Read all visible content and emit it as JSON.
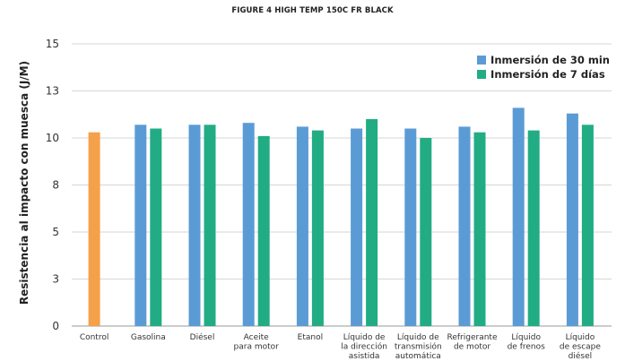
{
  "chart_data": {
    "type": "bar",
    "title": "FIGURE 4 HIGH TEMP 150C FR BLACK",
    "xlabel": "",
    "ylabel": "Resistencia al impacto con muesca (J/M)",
    "ylim": [
      0,
      15
    ],
    "yticks": [
      "0",
      "3",
      "5",
      "8",
      "10",
      "13",
      "15"
    ],
    "grid": true,
    "legend_position": "top-right",
    "categories": [
      [
        "Control"
      ],
      [
        "Gasolina"
      ],
      [
        "Diésel"
      ],
      [
        "Aceite",
        "para motor"
      ],
      [
        "Etanol"
      ],
      [
        "Líquido de",
        "la dirección",
        "asistida"
      ],
      [
        "Líquido de",
        "transmisión",
        "automática"
      ],
      [
        "Refrigerante",
        "de motor"
      ],
      [
        "Líquido",
        "de frenos"
      ],
      [
        "Líquido",
        "de escape",
        "diésel"
      ]
    ],
    "control": {
      "value": 10.3,
      "color": "#F5A04A"
    },
    "series": [
      {
        "name": "Inmersión de 30 min",
        "color": "#5B9BD5",
        "values": [
          null,
          10.7,
          10.7,
          10.8,
          10.6,
          10.5,
          10.5,
          10.6,
          11.6,
          11.3
        ]
      },
      {
        "name": "Inmersión de 7 días",
        "color": "#21AC84",
        "values": [
          null,
          10.5,
          10.7,
          10.1,
          10.4,
          11.0,
          10.0,
          10.3,
          10.4,
          10.7
        ]
      }
    ]
  }
}
